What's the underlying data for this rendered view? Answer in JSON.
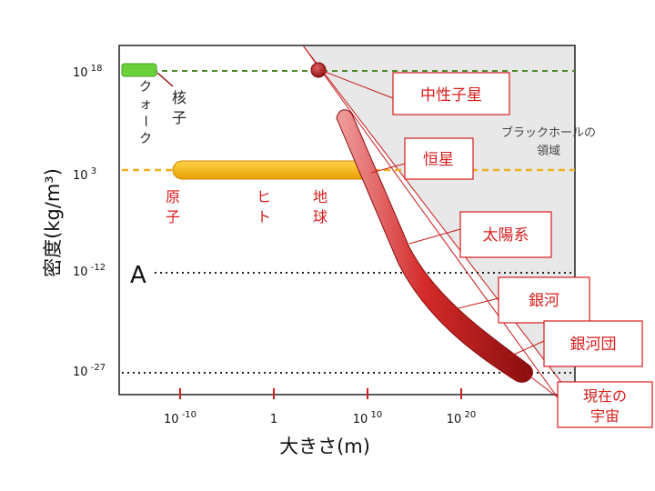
{
  "chart_data": {
    "type": "scatter",
    "title": "",
    "xlabel": "大きさ(m)",
    "ylabel": "密度(kg/m³)",
    "x_scale": "log",
    "y_scale": "log",
    "x_ticks": [
      {
        "value": 1e-10,
        "base": "10",
        "exp": "-10"
      },
      {
        "value": 1,
        "base": "1",
        "exp": ""
      },
      {
        "value": 10000000000.0,
        "base": "10",
        "exp": "10"
      },
      {
        "value": 1e+20,
        "base": "10",
        "exp": "20"
      }
    ],
    "y_ticks": [
      {
        "value": 1e+18,
        "base": "10",
        "exp": "18"
      },
      {
        "value": 1000.0,
        "base": "10",
        "exp": "3"
      },
      {
        "value": 1e-12,
        "base": "10",
        "exp": "-12"
      },
      {
        "value": 1e-27,
        "base": "10",
        "exp": "-27"
      }
    ],
    "reference_lines": [
      {
        "density": 1e+18,
        "style": "dashed",
        "color": "#4a8a2a"
      },
      {
        "density": 1000.0,
        "style": "dashed",
        "color": "#f0b020"
      },
      {
        "density": 1e-12,
        "style": "dotted",
        "color": "#222222"
      },
      {
        "density": 1e-27,
        "style": "dotted",
        "color": "#222222"
      }
    ],
    "black_hole_region": {
      "label_line1": "ブラックホールの",
      "label_line2": "領域",
      "fill": "#e8e8e8"
    },
    "marker_A": "A",
    "inline_labels": [
      {
        "id": "quark",
        "text": "クォーク",
        "vertical": true,
        "color": "#222222"
      },
      {
        "id": "nucleus",
        "text": "核子",
        "vertical": true,
        "color": "#222222"
      },
      {
        "id": "atom",
        "text": "原子",
        "vertical": true,
        "color": "#d81c1c"
      },
      {
        "id": "human",
        "text": "ヒト",
        "vertical": true,
        "color": "#d81c1c"
      },
      {
        "id": "earth",
        "text": "地球",
        "vertical": true,
        "color": "#d81c1c"
      }
    ],
    "callouts": [
      {
        "id": "neutron-star",
        "text": "中性子星"
      },
      {
        "id": "star",
        "text": "恒星"
      },
      {
        "id": "solar-system",
        "text": "太陽系"
      },
      {
        "id": "galaxy",
        "text": "銀河"
      },
      {
        "id": "galaxy-cluster",
        "text": "銀河団"
      },
      {
        "id": "universe",
        "line1": "現在の",
        "line2": "宇宙"
      }
    ],
    "colors": {
      "nucleus_bar": "#6bd23a",
      "matter_bar": "#f2b200",
      "cosmic_band": "#c81818",
      "callout_border": "#d81c1c",
      "accent_red": "#d81c1c"
    }
  }
}
